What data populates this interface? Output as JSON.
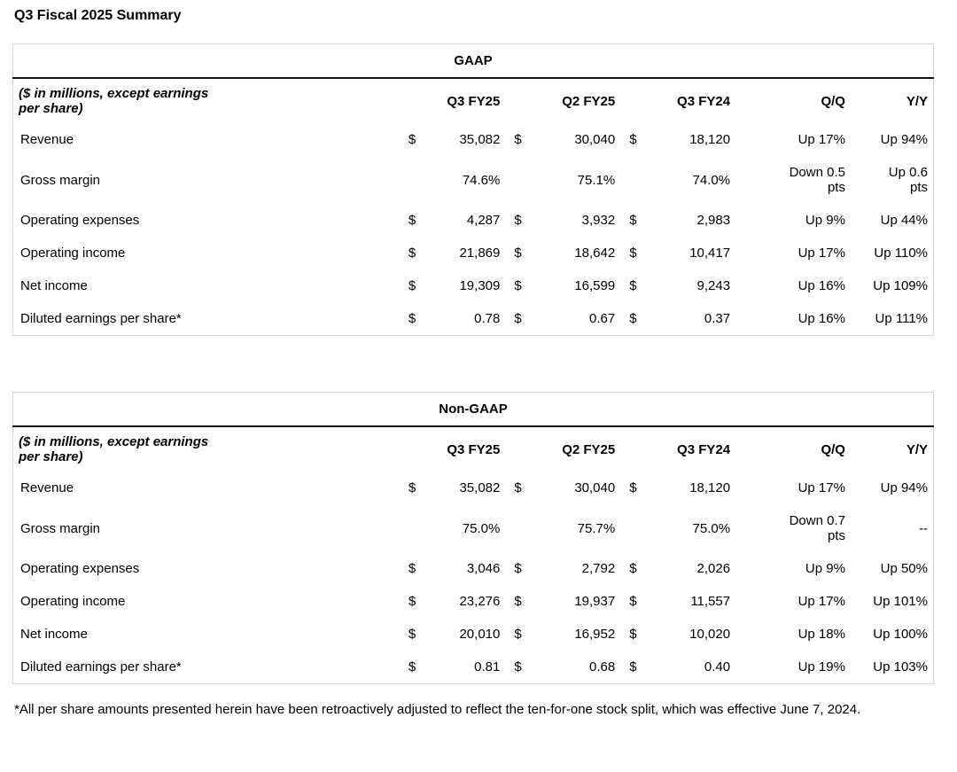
{
  "page_title": "Q3 Fiscal 2025 Summary",
  "currency_symbol": "$",
  "tables": [
    {
      "title": "GAAP",
      "unit_note": "($ in millions, except earnings\nper share)",
      "columns": [
        "Q3 FY25",
        "Q2 FY25",
        "Q3 FY24",
        "Q/Q",
        "Y/Y"
      ],
      "rows": [
        {
          "label": "Revenue",
          "dollar": true,
          "q3fy25": "35,082",
          "q2fy25": "30,040",
          "q3fy24": "18,120",
          "qq": "Up 17%",
          "yy": "Up 94%"
        },
        {
          "label": "Gross margin",
          "dollar": false,
          "q3fy25": "74.6%",
          "q2fy25": "75.1%",
          "q3fy24": "74.0%",
          "qq": "Down 0.5\npts",
          "yy": "Up 0.6\npts"
        },
        {
          "label": "Operating expenses",
          "dollar": true,
          "q3fy25": "4,287",
          "q2fy25": "3,932",
          "q3fy24": "2,983",
          "qq": "Up 9%",
          "yy": "Up 44%"
        },
        {
          "label": "Operating income",
          "dollar": true,
          "q3fy25": "21,869",
          "q2fy25": "18,642",
          "q3fy24": "10,417",
          "qq": "Up 17%",
          "yy": "Up 110%"
        },
        {
          "label": "Net income",
          "dollar": true,
          "q3fy25": "19,309",
          "q2fy25": "16,599",
          "q3fy24": "9,243",
          "qq": "Up 16%",
          "yy": "Up 109%"
        },
        {
          "label": "Diluted earnings per share*",
          "dollar": true,
          "q3fy25": "0.78",
          "q2fy25": "0.67",
          "q3fy24": "0.37",
          "qq": "Up 16%",
          "yy": "Up 111%"
        }
      ]
    },
    {
      "title": "Non-GAAP",
      "unit_note": "($ in millions, except earnings\nper share)",
      "columns": [
        "Q3 FY25",
        "Q2 FY25",
        "Q3 FY24",
        "Q/Q",
        "Y/Y"
      ],
      "rows": [
        {
          "label": "Revenue",
          "dollar": true,
          "q3fy25": "35,082",
          "q2fy25": "30,040",
          "q3fy24": "18,120",
          "qq": "Up 17%",
          "yy": "Up 94%"
        },
        {
          "label": "Gross margin",
          "dollar": false,
          "q3fy25": "75.0%",
          "q2fy25": "75.7%",
          "q3fy24": "75.0%",
          "qq": "Down 0.7\npts",
          "yy": "--"
        },
        {
          "label": "Operating expenses",
          "dollar": true,
          "q3fy25": "3,046",
          "q2fy25": "2,792",
          "q3fy24": "2,026",
          "qq": "Up 9%",
          "yy": "Up 50%"
        },
        {
          "label": "Operating income",
          "dollar": true,
          "q3fy25": "23,276",
          "q2fy25": "19,937",
          "q3fy24": "11,557",
          "qq": "Up 17%",
          "yy": "Up 101%"
        },
        {
          "label": "Net income",
          "dollar": true,
          "q3fy25": "20,010",
          "q2fy25": "16,952",
          "q3fy24": "10,020",
          "qq": "Up 18%",
          "yy": "Up 100%"
        },
        {
          "label": "Diluted earnings per share*",
          "dollar": true,
          "q3fy25": "0.81",
          "q2fy25": "0.68",
          "q3fy24": "0.40",
          "qq": "Up 19%",
          "yy": "Up 103%"
        }
      ]
    }
  ],
  "footnote": "*All per share amounts presented herein have been retroactively adjusted to reflect the ten-for-one stock split, which was effective June 7, 2024."
}
